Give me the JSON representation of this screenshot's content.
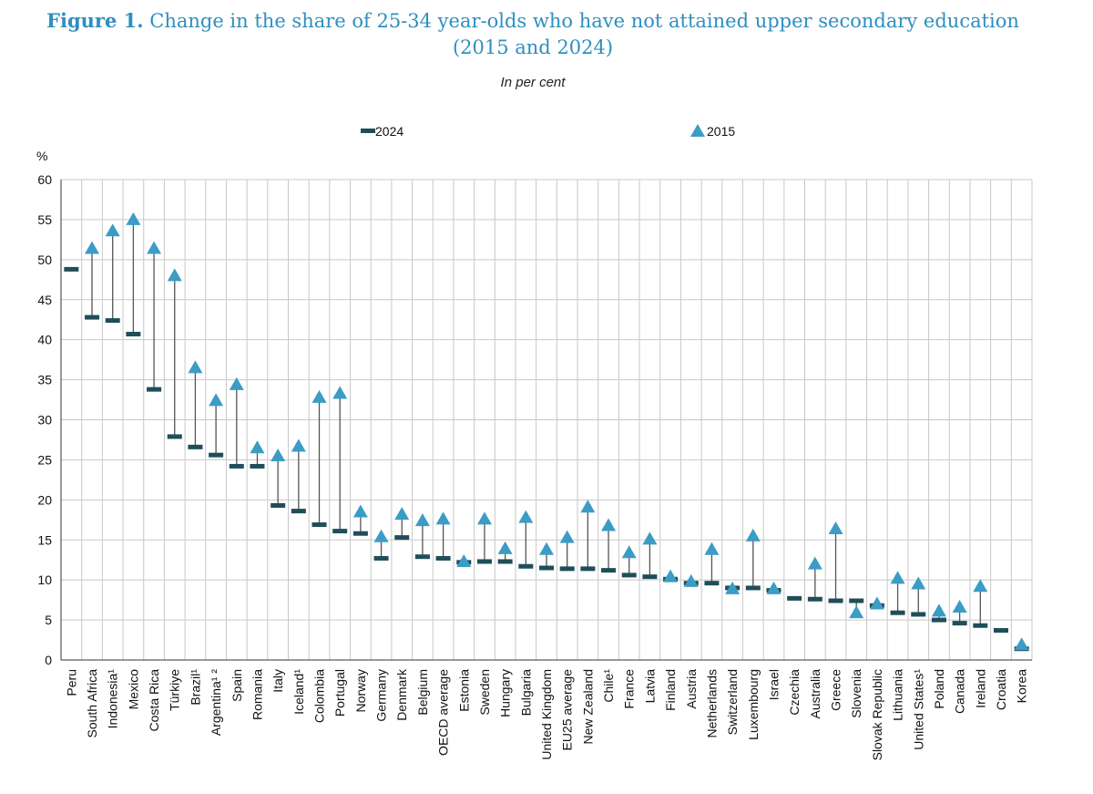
{
  "figure": {
    "label": "Figure 1.",
    "title_line1": "Change in the share of 25-34 year-olds who have not attained upper secondary education",
    "title_line2": "(2015 and 2024)",
    "subtitle": "In per cent"
  },
  "colors": {
    "title": "#2e8fc0",
    "marker_2024": "#1f4e5a",
    "marker_2024_alt": "#1f2d6b",
    "marker_2015": "#3b9cc6",
    "connector": "#555555",
    "grid": "#c8c8c8"
  },
  "chart_data": {
    "type": "dot-range",
    "title": "Change in the share of 25-34 year-olds who have not attained upper secondary education (2015 and 2024)",
    "subtitle": "In per cent",
    "ylabel": "%",
    "ylim": [
      0,
      60
    ],
    "yticks": [
      0,
      5,
      10,
      15,
      20,
      25,
      30,
      35,
      40,
      45,
      50,
      55,
      60
    ],
    "grid": true,
    "legend": [
      {
        "name": "2024",
        "marker": "dash"
      },
      {
        "name": "2015",
        "marker": "triangle"
      }
    ],
    "legend_position": "top",
    "categories": [
      "Peru",
      "South Africa",
      "Indonesia¹",
      "Mexico",
      "Costa Rica",
      "Türkiye",
      "Brazil¹",
      "Argentina¹ ²",
      "Spain",
      "Romania",
      "Italy",
      "Iceland¹",
      "Colombia",
      "Portugal",
      "Norway",
      "Germany",
      "Denmark",
      "Belgium",
      "OECD average",
      "Estonia",
      "Sweden",
      "Hungary",
      "Bulgaria",
      "United Kingdom",
      "EU25 average",
      "New Zealand",
      "Chile¹",
      "France",
      "Latvia",
      "Finland",
      "Austria",
      "Netherlands",
      "Switzerland",
      "Luxembourg",
      "Israel",
      "Czechia",
      "Australia",
      "Greece",
      "Slovenia",
      "Slovak Republic",
      "Lithuania",
      "United States¹",
      "Poland",
      "Canada",
      "Ireland",
      "Croatia",
      "Korea"
    ],
    "series": [
      {
        "name": "2024",
        "values": [
          48.8,
          42.8,
          42.4,
          40.7,
          33.8,
          27.9,
          26.6,
          25.6,
          24.2,
          24.2,
          19.3,
          18.6,
          16.9,
          16.1,
          15.8,
          12.7,
          15.3,
          12.9,
          12.7,
          12.2,
          12.3,
          12.3,
          11.7,
          11.5,
          11.4,
          11.4,
          11.2,
          10.6,
          10.4,
          10.1,
          9.6,
          9.6,
          9.0,
          9.0,
          8.7,
          7.7,
          7.6,
          7.4,
          7.4,
          6.8,
          5.9,
          5.7,
          5.0,
          4.6,
          4.3,
          3.7,
          1.4
        ]
      },
      {
        "name": "2015",
        "values": [
          null,
          51.4,
          53.6,
          55.0,
          51.4,
          48.0,
          36.5,
          32.4,
          34.4,
          26.5,
          25.5,
          26.7,
          32.8,
          33.3,
          18.5,
          15.4,
          18.2,
          17.4,
          17.6,
          12.3,
          17.6,
          13.9,
          17.8,
          13.8,
          15.3,
          19.1,
          16.8,
          13.4,
          15.1,
          10.4,
          9.8,
          13.8,
          8.9,
          15.5,
          8.9,
          null,
          12.0,
          16.4,
          5.9,
          7.0,
          10.2,
          9.5,
          6.1,
          6.6,
          9.2,
          null,
          1.9
        ]
      }
    ]
  }
}
